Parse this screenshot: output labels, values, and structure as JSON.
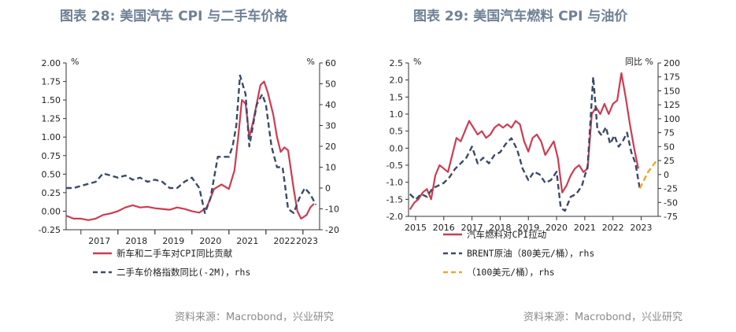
{
  "titles": {
    "left": "图表 28: 美国汽车 CPI 与二手车价格",
    "right": "图表 29: 美国汽车燃料 CPI 与油价"
  },
  "sources": {
    "left": "资料来源：Macrobond，兴业研究",
    "right": "资料来源：Macrobond，兴业研究"
  },
  "colors": {
    "red": "#cc3c52",
    "navy": "#3b4a66",
    "orange": "#f2a428",
    "axis": "#333333"
  },
  "chart_data": [
    {
      "type": "line",
      "x_ticks": [
        "2017",
        "2018",
        "2019",
        "2020",
        "2021",
        "2022",
        "2023"
      ],
      "x_range": [
        2016.6,
        2023.45
      ],
      "left_axis": {
        "unit": "%",
        "ylim": [
          -0.25,
          2.0
        ],
        "ticks": [
          "2.00",
          "1.75",
          "1.50",
          "1.25",
          "1.00",
          "0.75",
          "0.50",
          "0.25",
          "0.00",
          "-0.25"
        ]
      },
      "right_axis": {
        "unit": "%",
        "ylim": [
          -20,
          60
        ],
        "ticks": [
          "60",
          "50",
          "40",
          "30",
          "20",
          "10",
          "0",
          "-10",
          "-20"
        ]
      },
      "series": [
        {
          "name": "新车和二手车对CPI同比贡献",
          "axis": "left",
          "style": "solid",
          "color": "#cc3c52",
          "x": [
            2016.6,
            2016.8,
            2017.0,
            2017.2,
            2017.4,
            2017.6,
            2017.8,
            2018.0,
            2018.2,
            2018.4,
            2018.6,
            2018.8,
            2019.0,
            2019.2,
            2019.4,
            2019.6,
            2019.8,
            2020.0,
            2020.2,
            2020.4,
            2020.6,
            2020.8,
            2021.0,
            2021.15,
            2021.25,
            2021.35,
            2021.45,
            2021.55,
            2021.65,
            2021.75,
            2021.85,
            2021.95,
            2022.05,
            2022.2,
            2022.3,
            2022.4,
            2022.5,
            2022.6,
            2022.75,
            2022.85,
            2022.95,
            2023.1,
            2023.2,
            2023.3
          ],
          "y": [
            -0.06,
            -0.1,
            -0.1,
            -0.12,
            -0.1,
            -0.05,
            -0.03,
            0.0,
            0.05,
            0.08,
            0.05,
            0.06,
            0.04,
            0.03,
            0.02,
            0.05,
            0.03,
            0.0,
            -0.02,
            0.05,
            0.3,
            0.36,
            0.3,
            0.55,
            1.0,
            1.5,
            1.45,
            1.0,
            1.2,
            1.45,
            1.7,
            1.75,
            1.6,
            1.3,
            1.0,
            0.8,
            0.86,
            0.82,
            0.3,
            0.0,
            -0.1,
            -0.05,
            0.05,
            0.1
          ]
        },
        {
          "name": "二手车价格指数同比(-2M)，rhs",
          "axis": "right",
          "style": "dashed",
          "color": "#3b4a66",
          "x": [
            2016.6,
            2016.8,
            2017.0,
            2017.2,
            2017.4,
            2017.6,
            2017.8,
            2018.0,
            2018.2,
            2018.4,
            2018.6,
            2018.8,
            2019.0,
            2019.2,
            2019.4,
            2019.6,
            2019.8,
            2020.0,
            2020.2,
            2020.35,
            2020.5,
            2020.7,
            2020.85,
            2021.0,
            2021.1,
            2021.2,
            2021.3,
            2021.45,
            2021.55,
            2021.65,
            2021.75,
            2021.9,
            2022.0,
            2022.15,
            2022.3,
            2022.45,
            2022.6,
            2022.75,
            2022.9,
            2023.05,
            2023.2,
            2023.35
          ],
          "y": [
            0,
            0,
            1,
            2,
            3,
            7,
            6,
            5,
            6,
            4,
            5,
            3,
            4,
            3,
            0,
            0,
            3,
            5,
            0,
            -12,
            -5,
            15,
            15,
            15,
            20,
            30,
            54,
            45,
            20,
            30,
            40,
            45,
            40,
            20,
            10,
            10,
            -10,
            -12,
            -5,
            0,
            -3,
            -8
          ]
        }
      ]
    },
    {
      "type": "line",
      "x_ticks": [
        "2015",
        "2016",
        "2017",
        "2018",
        "2019",
        "2020",
        "2021",
        "2022",
        "2023"
      ],
      "x_range": [
        2014.75,
        2023.6
      ],
      "left_axis": {
        "unit": "%",
        "ylim": [
          -2.0,
          2.5
        ],
        "ticks": [
          "2.5",
          "2.0",
          "1.5",
          "1.0",
          "0.5",
          "0.0",
          "-0.5",
          "-1.0",
          "-1.5",
          "-2.0"
        ]
      },
      "right_axis": {
        "unit": "同比 %",
        "ylim": [
          -75,
          200
        ],
        "ticks": [
          "200",
          "175",
          "150",
          "125",
          "100",
          "75",
          "50",
          "25",
          "0",
          "-25",
          "-50",
          "-75"
        ]
      },
      "series": [
        {
          "name": "汽车燃料对CPI拉动",
          "axis": "left",
          "style": "solid",
          "color": "#cc3c52",
          "x": [
            2014.8,
            2014.95,
            2015.1,
            2015.25,
            2015.4,
            2015.55,
            2015.7,
            2015.85,
            2016.0,
            2016.15,
            2016.3,
            2016.45,
            2016.6,
            2016.75,
            2016.9,
            2017.05,
            2017.2,
            2017.35,
            2017.5,
            2017.65,
            2017.8,
            2017.95,
            2018.1,
            2018.25,
            2018.4,
            2018.55,
            2018.7,
            2018.85,
            2019.0,
            2019.15,
            2019.3,
            2019.45,
            2019.6,
            2019.75,
            2019.9,
            2020.05,
            2020.2,
            2020.35,
            2020.5,
            2020.65,
            2020.8,
            2020.95,
            2021.1,
            2021.25,
            2021.4,
            2021.55,
            2021.7,
            2021.85,
            2022.0,
            2022.15,
            2022.3,
            2022.45,
            2022.6,
            2022.75,
            2022.9
          ],
          "y": [
            -1.8,
            -1.6,
            -1.5,
            -1.3,
            -1.2,
            -1.5,
            -0.8,
            -0.5,
            -0.6,
            -0.7,
            -0.2,
            0.3,
            0.2,
            0.5,
            0.8,
            0.6,
            0.4,
            0.5,
            0.3,
            0.4,
            0.6,
            0.7,
            0.6,
            0.7,
            0.6,
            0.8,
            0.7,
            0.2,
            -0.1,
            0.3,
            0.4,
            0.2,
            -0.2,
            0.0,
            0.2,
            -0.3,
            -1.3,
            -1.1,
            -0.8,
            -0.6,
            -0.5,
            -0.7,
            -0.6,
            1.0,
            1.2,
            1.0,
            1.3,
            1.0,
            1.3,
            1.4,
            2.2,
            1.5,
            0.7,
            0.0,
            -0.6
          ]
        },
        {
          "name": "BRENT原油（80美元/桶），rhs",
          "axis": "right",
          "style": "dashed",
          "color": "#3b4a66",
          "x": [
            2014.8,
            2015.0,
            2015.2,
            2015.4,
            2015.6,
            2015.8,
            2016.0,
            2016.2,
            2016.4,
            2016.6,
            2016.8,
            2017.0,
            2017.2,
            2017.4,
            2017.6,
            2017.8,
            2018.0,
            2018.2,
            2018.4,
            2018.6,
            2018.8,
            2019.0,
            2019.2,
            2019.4,
            2019.6,
            2019.8,
            2020.0,
            2020.15,
            2020.3,
            2020.5,
            2020.7,
            2020.9,
            2021.1,
            2021.3,
            2021.45,
            2021.6,
            2021.75,
            2021.9,
            2022.05,
            2022.2,
            2022.35,
            2022.5,
            2022.65,
            2022.8,
            2022.95
          ],
          "y": [
            -35,
            -45,
            -35,
            -40,
            -25,
            -20,
            -15,
            -5,
            10,
            20,
            30,
            50,
            20,
            30,
            20,
            35,
            40,
            55,
            65,
            45,
            10,
            -10,
            5,
            0,
            -15,
            -10,
            5,
            -60,
            -65,
            -40,
            -35,
            -20,
            15,
            175,
            80,
            70,
            85,
            55,
            70,
            50,
            60,
            75,
            40,
            20,
            -25
          ]
        },
        {
          "name": "（100美元/桶），rhs",
          "axis": "right",
          "style": "dashed",
          "color": "#f2a428",
          "x": [
            2022.95,
            2023.1,
            2023.25,
            2023.4,
            2023.55
          ],
          "y": [
            -25,
            -10,
            5,
            15,
            25
          ]
        }
      ]
    }
  ]
}
